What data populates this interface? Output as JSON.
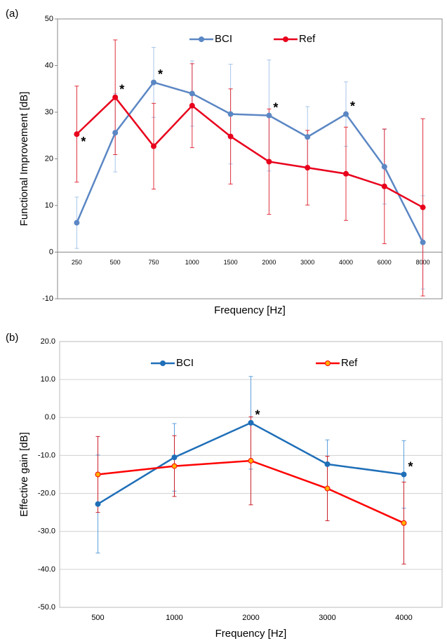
{
  "chart_data": [
    {
      "type": "line",
      "label": "(a)",
      "y_label": "Functional Improvement [dB]",
      "x_label": "Frequency [Hz]",
      "categories": [
        "250",
        "500",
        "750",
        "1000",
        "1500",
        "2000",
        "3000",
        "4000",
        "6000",
        "8000"
      ],
      "series": [
        {
          "name": "BCI",
          "color": "#5b87c4",
          "error_color": "#a9c6ea",
          "marker_fill": "#5b87c4",
          "values": [
            6.3,
            25.6,
            36.4,
            34.0,
            29.6,
            29.3,
            24.7,
            29.6,
            18.3,
            2.1
          ],
          "errors": [
            5.5,
            8.4,
            7.5,
            7.0,
            10.7,
            11.9,
            6.5,
            6.9,
            8.0,
            10.0
          ]
        },
        {
          "name": "Ref",
          "color": "#e8001c",
          "error_color": "#e0303c",
          "marker_fill": "#e8001c",
          "values": [
            25.3,
            33.2,
            22.7,
            31.4,
            24.8,
            19.4,
            18.1,
            16.8,
            14.1,
            9.6
          ],
          "errors": [
            10.3,
            12.3,
            9.2,
            9.0,
            10.2,
            11.3,
            8.0,
            10.0,
            12.3,
            19.0
          ]
        }
      ],
      "annotations": [
        {
          "text": "*",
          "series": 1,
          "index": 0,
          "place": "below"
        },
        {
          "text": "*",
          "series": 1,
          "index": 1,
          "place": "above"
        },
        {
          "text": "*",
          "series": 0,
          "index": 2,
          "place": "above"
        },
        {
          "text": "*",
          "series": 0,
          "index": 5,
          "place": "above"
        },
        {
          "text": "*",
          "series": 0,
          "index": 7,
          "place": "above"
        }
      ],
      "ylim": [
        -10,
        50
      ],
      "yticks": [
        -10,
        0,
        10,
        20,
        30,
        40,
        50
      ],
      "grid": false,
      "legend": "top"
    },
    {
      "type": "line",
      "label": "(b)",
      "y_label": "Effective gain  [dB]",
      "x_label": "Frequency [Hz]",
      "categories": [
        "500",
        "1000",
        "2000",
        "3000",
        "4000"
      ],
      "series": [
        {
          "name": "BCI",
          "color": "#1f6fb8",
          "error_color": "#5ea0dc",
          "marker_fill": "#1f6fb8",
          "values": [
            -22.8,
            -10.5,
            -1.4,
            -12.3,
            -15.0
          ],
          "errors": [
            12.9,
            8.9,
            12.2,
            6.4,
            8.9
          ]
        },
        {
          "name": "Ref",
          "color": "#ff0000",
          "error_color": "#c8202c",
          "marker_fill": "#ffb000",
          "values": [
            -15.0,
            -12.8,
            -11.4,
            -18.7,
            -27.8
          ],
          "errors": [
            10.0,
            8.0,
            11.6,
            8.5,
            10.8
          ]
        }
      ],
      "annotations": [
        {
          "text": "*",
          "series": 0,
          "index": 2,
          "place": "above"
        },
        {
          "text": "*",
          "series": 0,
          "index": 4,
          "place": "above"
        }
      ],
      "ylim": [
        -50,
        20
      ],
      "yticks": [
        {
          "value": -50,
          "label": "-50.0"
        },
        {
          "value": -40,
          "label": "-40.0"
        },
        {
          "value": -30,
          "label": "-30.0"
        },
        {
          "value": -20,
          "label": "-20.0"
        },
        {
          "value": -10,
          "label": "-10.0"
        },
        {
          "value": 0,
          "label": "0.0"
        },
        {
          "value": 10,
          "label": "10.0"
        },
        {
          "value": 20,
          "label": "20.0"
        }
      ],
      "grid": true,
      "legend": "top"
    }
  ]
}
